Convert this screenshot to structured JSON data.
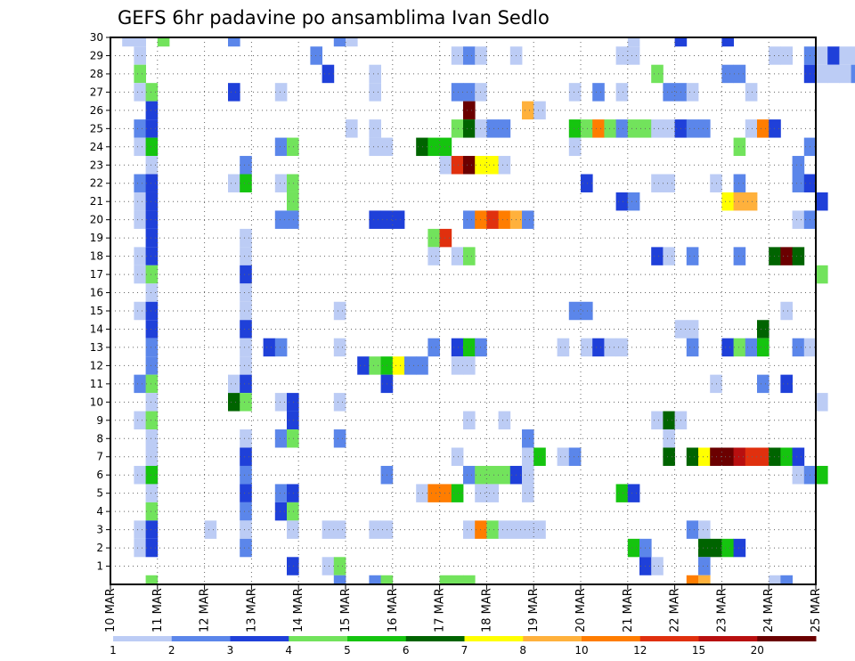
{
  "chart_data": {
    "type": "heatmap",
    "title": "GEFS 6hr padavine po ansamblima Ivan Sedlo",
    "xlabel": "",
    "ylabel": "",
    "x_tick_labels": [
      "10 MAR",
      "11 MAR",
      "12 MAR",
      "13 MAR",
      "14 MAR",
      "15 MAR",
      "16 MAR",
      "17 MAR",
      "18 MAR",
      "19 MAR",
      "20 MAR",
      "21 MAR",
      "22 MAR",
      "23 MAR",
      "24 MAR",
      "25 MAR"
    ],
    "x_range_days": [
      0,
      15
    ],
    "steps_per_day": 4,
    "y_tick_labels": [
      "1",
      "2",
      "3",
      "4",
      "5",
      "6",
      "7",
      "8",
      "9",
      "10",
      "11",
      "12",
      "13",
      "14",
      "15",
      "16",
      "17",
      "18",
      "19",
      "20",
      "21",
      "22",
      "23",
      "24",
      "25",
      "26",
      "27",
      "28",
      "29",
      "30"
    ],
    "ylim": [
      0,
      30
    ],
    "grid": true,
    "legend": {
      "placement": "bottom",
      "colors": [
        "#bcccf5",
        "#5b86ea",
        "#1f40d9",
        "#72e35c",
        "#15c40f",
        "#006400",
        "#ffff00",
        "#ffb13c",
        "#ff7d00",
        "#e0300e",
        "#b80f0f",
        "#6b0000"
      ],
      "labels": [
        "1",
        "2",
        "3",
        "4",
        "5",
        "6",
        "7",
        "8",
        "10",
        "12",
        "15",
        "20"
      ]
    },
    "value_classes": [
      {
        "class": 1,
        "min_mm": 1,
        "color": "#bcccf5"
      },
      {
        "class": 2,
        "min_mm": 2,
        "color": "#5b86ea"
      },
      {
        "class": 3,
        "min_mm": 3,
        "color": "#1f40d9"
      },
      {
        "class": 4,
        "min_mm": 4,
        "color": "#72e35c"
      },
      {
        "class": 5,
        "min_mm": 5,
        "color": "#15c40f"
      },
      {
        "class": 6,
        "min_mm": 6,
        "color": "#006400"
      },
      {
        "class": 7,
        "min_mm": 7,
        "color": "#ffff00"
      },
      {
        "class": 8,
        "min_mm": 8,
        "color": "#ffb13c"
      },
      {
        "class": 9,
        "min_mm": 10,
        "color": "#ff7d00"
      },
      {
        "class": 10,
        "min_mm": 12,
        "color": "#e0300e"
      },
      {
        "class": 11,
        "min_mm": 15,
        "color": "#b80f0f"
      },
      {
        "class": 12,
        "min_mm": 20,
        "color": "#6b0000"
      }
    ],
    "cell_note": "cells: [member_row (0 = bottom row, 30 = top row), time_step (6-hour steps from 10 MAR 00Z), value_class]",
    "cells": [
      [
        30,
        1,
        1
      ],
      [
        30,
        2,
        1
      ],
      [
        30,
        4,
        4
      ],
      [
        30,
        10,
        2
      ],
      [
        30,
        19,
        2
      ],
      [
        30,
        20,
        1
      ],
      [
        30,
        44,
        1
      ],
      [
        30,
        48,
        3
      ],
      [
        30,
        52,
        3
      ],
      [
        29,
        2,
        1
      ],
      [
        29,
        17,
        2
      ],
      [
        29,
        29,
        1
      ],
      [
        29,
        30,
        2
      ],
      [
        29,
        31,
        1
      ],
      [
        29,
        34,
        1
      ],
      [
        29,
        43,
        1
      ],
      [
        29,
        44,
        1
      ],
      [
        29,
        56,
        1
      ],
      [
        29,
        57,
        1
      ],
      [
        29,
        59,
        2
      ],
      [
        29,
        60,
        1
      ],
      [
        29,
        61,
        3
      ],
      [
        29,
        62,
        1
      ],
      [
        29,
        63,
        1
      ],
      [
        28,
        2,
        4
      ],
      [
        28,
        18,
        3
      ],
      [
        28,
        22,
        1
      ],
      [
        28,
        46,
        4
      ],
      [
        28,
        52,
        2
      ],
      [
        28,
        53,
        2
      ],
      [
        28,
        59,
        3
      ],
      [
        28,
        60,
        1
      ],
      [
        28,
        61,
        1
      ],
      [
        28,
        62,
        1
      ],
      [
        28,
        63,
        2
      ],
      [
        28,
        64,
        2
      ],
      [
        28,
        65,
        1
      ],
      [
        27,
        2,
        1
      ],
      [
        27,
        3,
        4
      ],
      [
        27,
        10,
        3
      ],
      [
        27,
        14,
        1
      ],
      [
        27,
        22,
        1
      ],
      [
        27,
        29,
        2
      ],
      [
        27,
        30,
        2
      ],
      [
        27,
        31,
        1
      ],
      [
        27,
        39,
        1
      ],
      [
        27,
        41,
        2
      ],
      [
        27,
        43,
        1
      ],
      [
        27,
        47,
        2
      ],
      [
        27,
        48,
        2
      ],
      [
        27,
        49,
        1
      ],
      [
        27,
        54,
        1
      ],
      [
        26,
        3,
        3
      ],
      [
        26,
        30,
        12
      ],
      [
        26,
        35,
        8
      ],
      [
        26,
        36,
        1
      ],
      [
        25,
        2,
        2
      ],
      [
        25,
        3,
        3
      ],
      [
        25,
        20,
        1
      ],
      [
        25,
        22,
        1
      ],
      [
        25,
        29,
        4
      ],
      [
        25,
        30,
        6
      ],
      [
        25,
        31,
        1
      ],
      [
        25,
        32,
        2
      ],
      [
        25,
        33,
        2
      ],
      [
        25,
        39,
        5
      ],
      [
        25,
        40,
        4
      ],
      [
        25,
        41,
        9
      ],
      [
        25,
        42,
        4
      ],
      [
        25,
        43,
        2
      ],
      [
        25,
        44,
        4
      ],
      [
        25,
        45,
        4
      ],
      [
        25,
        46,
        1
      ],
      [
        25,
        47,
        1
      ],
      [
        25,
        48,
        3
      ],
      [
        25,
        49,
        2
      ],
      [
        25,
        50,
        2
      ],
      [
        25,
        54,
        1
      ],
      [
        25,
        55,
        9
      ],
      [
        25,
        56,
        3
      ],
      [
        24,
        2,
        1
      ],
      [
        24,
        3,
        5
      ],
      [
        24,
        14,
        2
      ],
      [
        24,
        15,
        4
      ],
      [
        24,
        22,
        1
      ],
      [
        24,
        23,
        1
      ],
      [
        24,
        26,
        6
      ],
      [
        24,
        27,
        5
      ],
      [
        24,
        28,
        5
      ],
      [
        24,
        39,
        1
      ],
      [
        24,
        53,
        4
      ],
      [
        24,
        59,
        2
      ],
      [
        23,
        3,
        1
      ],
      [
        23,
        11,
        2
      ],
      [
        23,
        28,
        1
      ],
      [
        23,
        29,
        10
      ],
      [
        23,
        30,
        12
      ],
      [
        23,
        31,
        7
      ],
      [
        23,
        32,
        7
      ],
      [
        23,
        33,
        1
      ],
      [
        23,
        58,
        2
      ],
      [
        22,
        2,
        2
      ],
      [
        22,
        3,
        3
      ],
      [
        22,
        10,
        1
      ],
      [
        22,
        11,
        5
      ],
      [
        22,
        14,
        1
      ],
      [
        22,
        15,
        4
      ],
      [
        22,
        40,
        3
      ],
      [
        22,
        46,
        1
      ],
      [
        22,
        47,
        1
      ],
      [
        22,
        51,
        1
      ],
      [
        22,
        53,
        2
      ],
      [
        22,
        58,
        2
      ],
      [
        22,
        59,
        3
      ],
      [
        21,
        2,
        1
      ],
      [
        21,
        3,
        3
      ],
      [
        21,
        15,
        4
      ],
      [
        21,
        43,
        3
      ],
      [
        21,
        44,
        2
      ],
      [
        21,
        52,
        7
      ],
      [
        21,
        53,
        8
      ],
      [
        21,
        54,
        8
      ],
      [
        21,
        60,
        3
      ],
      [
        20,
        2,
        1
      ],
      [
        20,
        3,
        3
      ],
      [
        20,
        14,
        2
      ],
      [
        20,
        15,
        2
      ],
      [
        20,
        22,
        3
      ],
      [
        20,
        23,
        3
      ],
      [
        20,
        24,
        3
      ],
      [
        20,
        30,
        2
      ],
      [
        20,
        31,
        9
      ],
      [
        20,
        32,
        10
      ],
      [
        20,
        33,
        9
      ],
      [
        20,
        34,
        8
      ],
      [
        20,
        35,
        2
      ],
      [
        20,
        58,
        1
      ],
      [
        20,
        59,
        2
      ],
      [
        19,
        3,
        3
      ],
      [
        19,
        11,
        1
      ],
      [
        19,
        27,
        4
      ],
      [
        19,
        28,
        10
      ],
      [
        18,
        2,
        1
      ],
      [
        18,
        3,
        3
      ],
      [
        18,
        11,
        1
      ],
      [
        18,
        27,
        1
      ],
      [
        18,
        29,
        1
      ],
      [
        18,
        30,
        4
      ],
      [
        18,
        46,
        3
      ],
      [
        18,
        47,
        1
      ],
      [
        18,
        49,
        2
      ],
      [
        18,
        53,
        2
      ],
      [
        18,
        56,
        6
      ],
      [
        18,
        57,
        12
      ],
      [
        18,
        58,
        6
      ],
      [
        17,
        2,
        1
      ],
      [
        17,
        3,
        4
      ],
      [
        17,
        11,
        3
      ],
      [
        17,
        60,
        4
      ],
      [
        16,
        3,
        1
      ],
      [
        16,
        11,
        1
      ],
      [
        15,
        2,
        1
      ],
      [
        15,
        3,
        3
      ],
      [
        15,
        11,
        1
      ],
      [
        15,
        19,
        1
      ],
      [
        15,
        39,
        2
      ],
      [
        15,
        40,
        2
      ],
      [
        15,
        57,
        1
      ],
      [
        14,
        3,
        3
      ],
      [
        14,
        11,
        3
      ],
      [
        14,
        48,
        1
      ],
      [
        14,
        49,
        1
      ],
      [
        14,
        55,
        6
      ],
      [
        13,
        3,
        2
      ],
      [
        13,
        11,
        1
      ],
      [
        13,
        13,
        3
      ],
      [
        13,
        14,
        2
      ],
      [
        13,
        19,
        1
      ],
      [
        13,
        27,
        2
      ],
      [
        13,
        29,
        3
      ],
      [
        13,
        30,
        5
      ],
      [
        13,
        31,
        2
      ],
      [
        13,
        38,
        1
      ],
      [
        13,
        40,
        1
      ],
      [
        13,
        41,
        3
      ],
      [
        13,
        42,
        1
      ],
      [
        13,
        43,
        1
      ],
      [
        13,
        49,
        2
      ],
      [
        13,
        52,
        3
      ],
      [
        13,
        53,
        4
      ],
      [
        13,
        54,
        2
      ],
      [
        13,
        55,
        5
      ],
      [
        13,
        58,
        2
      ],
      [
        13,
        59,
        1
      ],
      [
        12,
        3,
        2
      ],
      [
        12,
        11,
        1
      ],
      [
        12,
        21,
        3
      ],
      [
        12,
        22,
        4
      ],
      [
        12,
        23,
        5
      ],
      [
        12,
        24,
        7
      ],
      [
        12,
        25,
        2
      ],
      [
        12,
        26,
        2
      ],
      [
        12,
        29,
        1
      ],
      [
        12,
        30,
        1
      ],
      [
        11,
        2,
        2
      ],
      [
        11,
        3,
        4
      ],
      [
        11,
        10,
        1
      ],
      [
        11,
        11,
        3
      ],
      [
        11,
        23,
        3
      ],
      [
        11,
        51,
        1
      ],
      [
        11,
        55,
        2
      ],
      [
        11,
        57,
        3
      ],
      [
        10,
        3,
        1
      ],
      [
        10,
        10,
        6
      ],
      [
        10,
        11,
        4
      ],
      [
        10,
        14,
        1
      ],
      [
        10,
        15,
        3
      ],
      [
        10,
        19,
        1
      ],
      [
        10,
        60,
        1
      ],
      [
        9,
        2,
        1
      ],
      [
        9,
        3,
        4
      ],
      [
        9,
        15,
        3
      ],
      [
        9,
        30,
        1
      ],
      [
        9,
        33,
        1
      ],
      [
        9,
        46,
        1
      ],
      [
        9,
        47,
        6
      ],
      [
        9,
        48,
        1
      ],
      [
        8,
        3,
        1
      ],
      [
        8,
        11,
        1
      ],
      [
        8,
        14,
        2
      ],
      [
        8,
        15,
        4
      ],
      [
        8,
        19,
        2
      ],
      [
        8,
        35,
        2
      ],
      [
        8,
        47,
        1
      ],
      [
        7,
        3,
        1
      ],
      [
        7,
        11,
        3
      ],
      [
        7,
        29,
        1
      ],
      [
        7,
        35,
        1
      ],
      [
        7,
        36,
        5
      ],
      [
        7,
        38,
        1
      ],
      [
        7,
        39,
        2
      ],
      [
        7,
        47,
        6
      ],
      [
        7,
        49,
        6
      ],
      [
        7,
        50,
        7
      ],
      [
        7,
        51,
        12
      ],
      [
        7,
        52,
        12
      ],
      [
        7,
        53,
        11
      ],
      [
        7,
        54,
        10
      ],
      [
        7,
        55,
        10
      ],
      [
        7,
        56,
        6
      ],
      [
        7,
        57,
        5
      ],
      [
        7,
        58,
        3
      ],
      [
        6,
        2,
        1
      ],
      [
        6,
        3,
        5
      ],
      [
        6,
        11,
        2
      ],
      [
        6,
        23,
        2
      ],
      [
        6,
        30,
        2
      ],
      [
        6,
        31,
        4
      ],
      [
        6,
        32,
        4
      ],
      [
        6,
        33,
        4
      ],
      [
        6,
        34,
        3
      ],
      [
        6,
        35,
        1
      ],
      [
        6,
        58,
        1
      ],
      [
        6,
        59,
        2
      ],
      [
        6,
        60,
        5
      ],
      [
        5,
        3,
        1
      ],
      [
        5,
        11,
        3
      ],
      [
        5,
        14,
        2
      ],
      [
        5,
        15,
        3
      ],
      [
        5,
        26,
        1
      ],
      [
        5,
        27,
        9
      ],
      [
        5,
        28,
        9
      ],
      [
        5,
        29,
        5
      ],
      [
        5,
        31,
        1
      ],
      [
        5,
        32,
        1
      ],
      [
        5,
        35,
        1
      ],
      [
        5,
        43,
        5
      ],
      [
        5,
        44,
        3
      ],
      [
        4,
        3,
        4
      ],
      [
        4,
        11,
        2
      ],
      [
        4,
        14,
        3
      ],
      [
        4,
        15,
        4
      ],
      [
        3,
        2,
        1
      ],
      [
        3,
        3,
        3
      ],
      [
        3,
        8,
        1
      ],
      [
        3,
        11,
        1
      ],
      [
        3,
        15,
        1
      ],
      [
        3,
        18,
        1
      ],
      [
        3,
        19,
        1
      ],
      [
        3,
        22,
        1
      ],
      [
        3,
        23,
        1
      ],
      [
        3,
        30,
        1
      ],
      [
        3,
        31,
        9
      ],
      [
        3,
        32,
        4
      ],
      [
        3,
        33,
        1
      ],
      [
        3,
        34,
        1
      ],
      [
        3,
        35,
        1
      ],
      [
        3,
        36,
        1
      ],
      [
        3,
        49,
        2
      ],
      [
        3,
        50,
        1
      ],
      [
        2,
        2,
        1
      ],
      [
        2,
        3,
        3
      ],
      [
        2,
        11,
        2
      ],
      [
        2,
        44,
        5
      ],
      [
        2,
        45,
        2
      ],
      [
        2,
        50,
        6
      ],
      [
        2,
        51,
        6
      ],
      [
        2,
        52,
        5
      ],
      [
        2,
        53,
        3
      ],
      [
        1,
        15,
        3
      ],
      [
        1,
        18,
        1
      ],
      [
        1,
        19,
        4
      ],
      [
        1,
        45,
        3
      ],
      [
        1,
        46,
        1
      ],
      [
        1,
        50,
        2
      ],
      [
        0,
        3,
        4
      ],
      [
        0,
        19,
        2
      ],
      [
        0,
        22,
        2
      ],
      [
        0,
        23,
        4
      ],
      [
        0,
        28,
        4
      ],
      [
        0,
        29,
        4
      ],
      [
        0,
        30,
        4
      ],
      [
        0,
        49,
        9
      ],
      [
        0,
        50,
        8
      ],
      [
        0,
        56,
        1
      ],
      [
        0,
        57,
        2
      ]
    ]
  }
}
